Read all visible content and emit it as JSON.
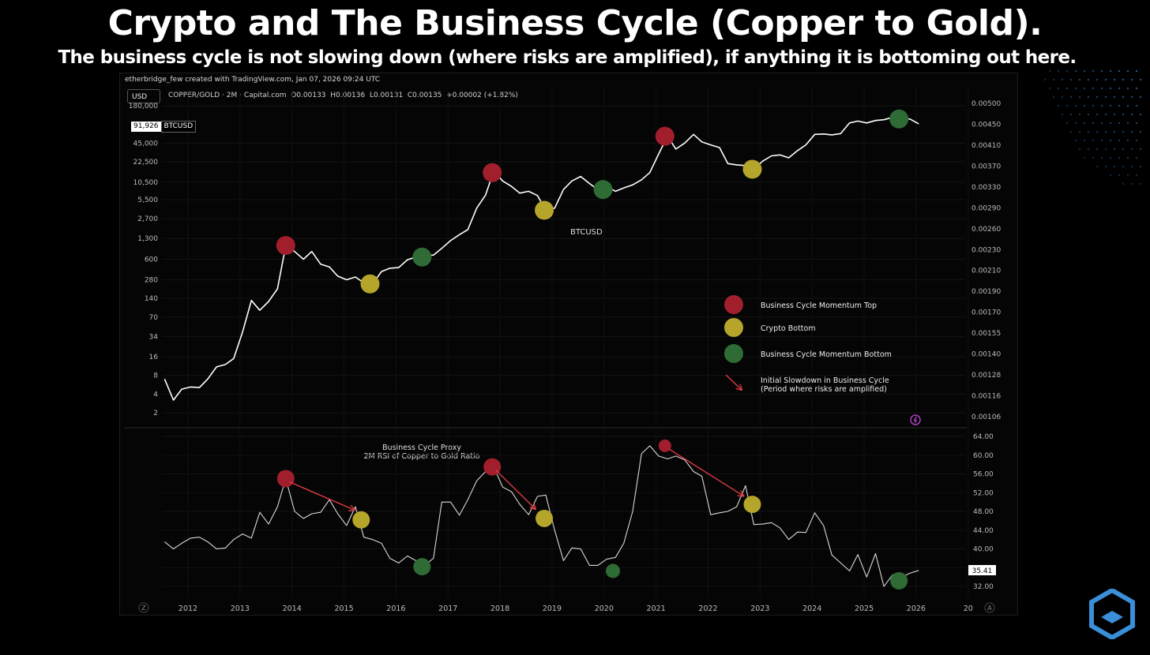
{
  "header": {
    "title": "Crypto and The Business Cycle (Copper to Gold).",
    "subtitle": "The business cycle is not slowing down (where risks are amplified), if anything it is bottoming out here."
  },
  "toolbar": {
    "attribution": "etherbridge_few created with TradingView.com, Jan 07, 2026 09:24 UTC",
    "currency_button": "USD",
    "ohlc": "COPPER/GOLD · 2M · Capital.com  O0.00133  H0.00136  L0.00131  C0.00135  +0.00002 (+1.82%)"
  },
  "price_tag": {
    "value": "91,926",
    "symbol": "BTCUSD"
  },
  "colors": {
    "top": "#a11f2c",
    "bottom_crypto": "#b5a52a",
    "momentum_bottom": "#2f6b34",
    "arrow": "#e03a45"
  },
  "chart_data": [
    {
      "type": "line",
      "name": "BTCUSD",
      "series_label": "BTCUSD",
      "scale": "log",
      "x_ticks": [
        "2012",
        "2013",
        "2014",
        "2015",
        "2016",
        "2017",
        "2018",
        "2019",
        "2020",
        "2021",
        "2022",
        "2023",
        "2024",
        "2025",
        "2026",
        "20"
      ],
      "left_axis_ticks": [
        "180,000",
        "45,000",
        "22,500",
        "10,500",
        "5,500",
        "2,700",
        "1,300",
        "600",
        "280",
        "140",
        "70",
        "34",
        "16",
        "8",
        "4",
        "2"
      ],
      "right_axis_ticks": [
        "0.00500",
        "0.00450",
        "0.00410",
        "0.00370",
        "0.00330",
        "0.00290",
        "0.00260",
        "0.00230",
        "0.00210",
        "0.00190",
        "0.00170",
        "0.00155",
        "0.00140",
        "0.00128",
        "0.00116",
        "0.00106"
      ],
      "x": [
        2011.55,
        2011.72,
        2011.88,
        2012.05,
        2012.22,
        2012.38,
        2012.55,
        2012.72,
        2012.88,
        2013.05,
        2013.22,
        2013.38,
        2013.55,
        2013.72,
        2013.88,
        2014.05,
        2014.22,
        2014.38,
        2014.55,
        2014.72,
        2014.88,
        2015.05,
        2015.22,
        2015.38,
        2015.55,
        2015.72,
        2015.88,
        2016.05,
        2016.22,
        2016.38,
        2016.55,
        2016.72,
        2016.88,
        2017.05,
        2017.22,
        2017.38,
        2017.55,
        2017.72,
        2017.88,
        2018.05,
        2018.22,
        2018.38,
        2018.55,
        2018.72,
        2018.88,
        2019.05,
        2019.22,
        2019.38,
        2019.55,
        2019.72,
        2019.88,
        2020.05,
        2020.22,
        2020.38,
        2020.55,
        2020.72,
        2020.88,
        2021.05,
        2021.22,
        2021.38,
        2021.55,
        2021.72,
        2021.88,
        2022.05,
        2022.22,
        2022.38,
        2022.55,
        2022.72,
        2022.88,
        2023.05,
        2023.22,
        2023.38,
        2023.55,
        2023.72,
        2023.88,
        2024.05,
        2024.22,
        2024.38,
        2024.55,
        2024.72,
        2024.88,
        2025.05,
        2025.22,
        2025.38,
        2025.55,
        2025.72,
        2025.88,
        2026.05
      ],
      "values": [
        7,
        3.2,
        4.8,
        5.2,
        5.1,
        7,
        11,
        12,
        15,
        40,
        130,
        90,
        125,
        200,
        1000,
        800,
        600,
        800,
        500,
        450,
        320,
        280,
        310,
        250,
        240,
        380,
        430,
        440,
        590,
        650,
        680,
        700,
        900,
        1200,
        1500,
        1800,
        4000,
        6500,
        16000,
        11000,
        9000,
        7000,
        7500,
        6400,
        3700,
        4000,
        8000,
        11000,
        13000,
        10000,
        8000,
        9000,
        7500,
        8500,
        9500,
        11500,
        15000,
        30000,
        58000,
        36000,
        45000,
        62000,
        47000,
        42000,
        38000,
        21000,
        20000,
        19500,
        17000,
        23000,
        28000,
        29000,
        26000,
        34000,
        42000,
        62000,
        63000,
        61000,
        64000,
        95000,
        102000,
        95000,
        104000,
        107000,
        117000,
        112000,
        110000,
        91926
      ],
      "markers": [
        {
          "x": 2013.88,
          "value": 1000,
          "kind": "top"
        },
        {
          "x": 2015.5,
          "value": 240,
          "kind": "crypto_bottom"
        },
        {
          "x": 2016.5,
          "value": 650,
          "kind": "momentum_bottom"
        },
        {
          "x": 2017.85,
          "value": 15000,
          "kind": "top"
        },
        {
          "x": 2018.85,
          "value": 3700,
          "kind": "crypto_bottom"
        },
        {
          "x": 2019.98,
          "value": 8000,
          "kind": "momentum_bottom"
        },
        {
          "x": 2021.17,
          "value": 58000,
          "kind": "top"
        },
        {
          "x": 2022.85,
          "value": 17000,
          "kind": "crypto_bottom"
        },
        {
          "x": 2025.67,
          "value": 110000,
          "kind": "momentum_bottom"
        }
      ]
    },
    {
      "type": "line",
      "name": "RSI",
      "title": "Business Cycle Proxy",
      "subtitle": "2M RSI of Copper to Gold Ratio",
      "ylim": [
        30,
        66
      ],
      "y_ticks": [
        "64.00",
        "60.00",
        "56.00",
        "52.00",
        "48.00",
        "44.00",
        "40.00",
        "36.00",
        "32.00"
      ],
      "last_value_label": "35.41",
      "last_value": 35.41,
      "x": [
        2011.55,
        2011.72,
        2011.88,
        2012.05,
        2012.22,
        2012.38,
        2012.55,
        2012.72,
        2012.88,
        2013.05,
        2013.22,
        2013.38,
        2013.55,
        2013.72,
        2013.88,
        2014.05,
        2014.22,
        2014.38,
        2014.55,
        2014.72,
        2014.88,
        2015.05,
        2015.22,
        2015.38,
        2015.55,
        2015.72,
        2015.88,
        2016.05,
        2016.22,
        2016.38,
        2016.55,
        2016.72,
        2016.88,
        2017.05,
        2017.22,
        2017.38,
        2017.55,
        2017.72,
        2017.88,
        2018.05,
        2018.22,
        2018.38,
        2018.55,
        2018.72,
        2018.88,
        2019.05,
        2019.22,
        2019.38,
        2019.55,
        2019.72,
        2019.88,
        2020.05,
        2020.22,
        2020.38,
        2020.55,
        2020.72,
        2020.88,
        2021.05,
        2021.22,
        2021.38,
        2021.55,
        2021.72,
        2021.88,
        2022.05,
        2022.22,
        2022.38,
        2022.55,
        2022.72,
        2022.88,
        2023.05,
        2023.22,
        2023.38,
        2023.55,
        2023.72,
        2023.88,
        2024.05,
        2024.22,
        2024.38,
        2024.55,
        2024.72,
        2024.88,
        2025.05,
        2025.22,
        2025.38,
        2025.55,
        2025.72,
        2025.88,
        2026.05
      ],
      "values": [
        41.5,
        40,
        41.2,
        42.3,
        42.5,
        41.5,
        40,
        40.2,
        42,
        43.2,
        42.3,
        47.8,
        45.3,
        49,
        55,
        48,
        46.5,
        47.5,
        47.8,
        50.5,
        47.5,
        45,
        49,
        42.5,
        42,
        41.2,
        38,
        37,
        38.5,
        37.5,
        36.5,
        38,
        50,
        50,
        47.2,
        50.5,
        54.5,
        56.5,
        57.5,
        53.2,
        52.2,
        49.5,
        47.3,
        51.2,
        51.5,
        44,
        37.5,
        40.2,
        40,
        36.5,
        36.5,
        37.8,
        38.2,
        41.2,
        48,
        60.3,
        62,
        59.8,
        59.2,
        59.8,
        59,
        56.5,
        55.5,
        47.3,
        47.7,
        48,
        49,
        53.5,
        45.2,
        45.3,
        45.6,
        44.5,
        42,
        43.6,
        43.5,
        47.7,
        45,
        38.7,
        37,
        35.3,
        38.8,
        34,
        39,
        32,
        34.5,
        34,
        34.8,
        35.41
      ],
      "markers": [
        {
          "x": 2013.88,
          "value": 55,
          "kind": "top"
        },
        {
          "x": 2015.33,
          "value": 46.2,
          "kind": "crypto_bottom"
        },
        {
          "x": 2016.5,
          "value": 36.2,
          "kind": "momentum_bottom"
        },
        {
          "x": 2017.85,
          "value": 57.5,
          "kind": "top"
        },
        {
          "x": 2018.85,
          "value": 46.5,
          "kind": "crypto_bottom"
        },
        {
          "x": 2020.17,
          "value": 35.3,
          "kind": "momentum_bottom"
        },
        {
          "x": 2021.17,
          "value": 62,
          "kind": "top"
        },
        {
          "x": 2022.85,
          "value": 49.5,
          "kind": "crypto_bottom"
        },
        {
          "x": 2025.67,
          "value": 33.2,
          "kind": "momentum_bottom"
        }
      ],
      "arrows": [
        {
          "from": [
            2013.95,
            54.3
          ],
          "to": [
            2015.2,
            48.3
          ]
        },
        {
          "from": [
            2017.92,
            56.8
          ],
          "to": [
            2018.68,
            48.5
          ]
        },
        {
          "from": [
            2021.25,
            61.3
          ],
          "to": [
            2022.68,
            51.3
          ]
        }
      ]
    }
  ],
  "legend": {
    "items": [
      {
        "label": "Business Cycle Momentum Top",
        "kind": "top"
      },
      {
        "label": "Crypto Bottom",
        "kind": "crypto_bottom"
      },
      {
        "label": "Business Cycle Momentum Bottom",
        "kind": "momentum_bottom"
      },
      {
        "label": "Initial Slowdown in Business Cycle",
        "label2": "(Period where risks are amplified)",
        "kind": "arrow"
      }
    ]
  },
  "axis_controls": {
    "left": "Z",
    "right": "A"
  }
}
